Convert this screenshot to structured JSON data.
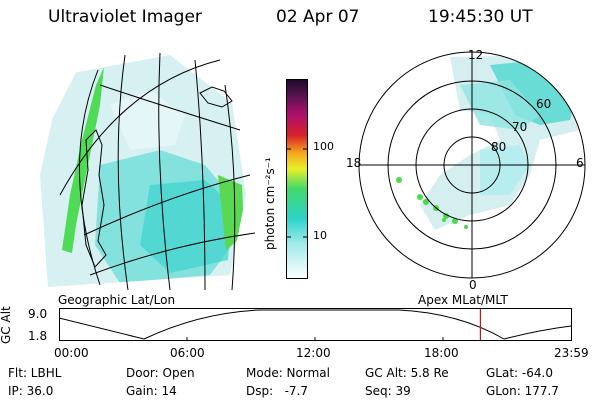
{
  "header": {
    "instrument": "Ultraviolet Imager",
    "date": "02 Apr 07",
    "time": "19:45:30 UT"
  },
  "colorbar": {
    "unit_label": "photon cm⁻²s⁻¹",
    "ticks": [
      "100",
      "10"
    ]
  },
  "polar_plot": {
    "mlt_labels": [
      "12",
      "18",
      "6",
      "0"
    ],
    "lat_labels": [
      "60",
      "70",
      "80"
    ],
    "caption": "Apex MLat/MLT"
  },
  "geo_plot": {
    "caption": "Geographic Lat/Lon"
  },
  "altitude_plot": {
    "ylabel": "GC Alt",
    "ytick_top": "9.0",
    "ytick_bottom": "1.8",
    "xticks": [
      "00:00",
      "06:00",
      "12:00",
      "18:00",
      "23:59"
    ],
    "current_time_fraction": 0.823
  },
  "info": {
    "flt": "Flt: LBHL",
    "door": "Door: Open",
    "mode": "Mode: Normal",
    "gc_alt": "GC Alt: 5.8 Re",
    "glat": "GLat: -64.0",
    "ip": "IP: 36.0",
    "gain": "Gain: 14",
    "dsp": "Dsp:   -7.7",
    "seq": "Seq: 39",
    "glon": "GLon: 177.7"
  },
  "colors": {
    "aurora_low": "#c8ecef",
    "aurora_mid": "#39d1cc",
    "aurora_high": "#53d84b",
    "time_marker": "#cc1111"
  }
}
